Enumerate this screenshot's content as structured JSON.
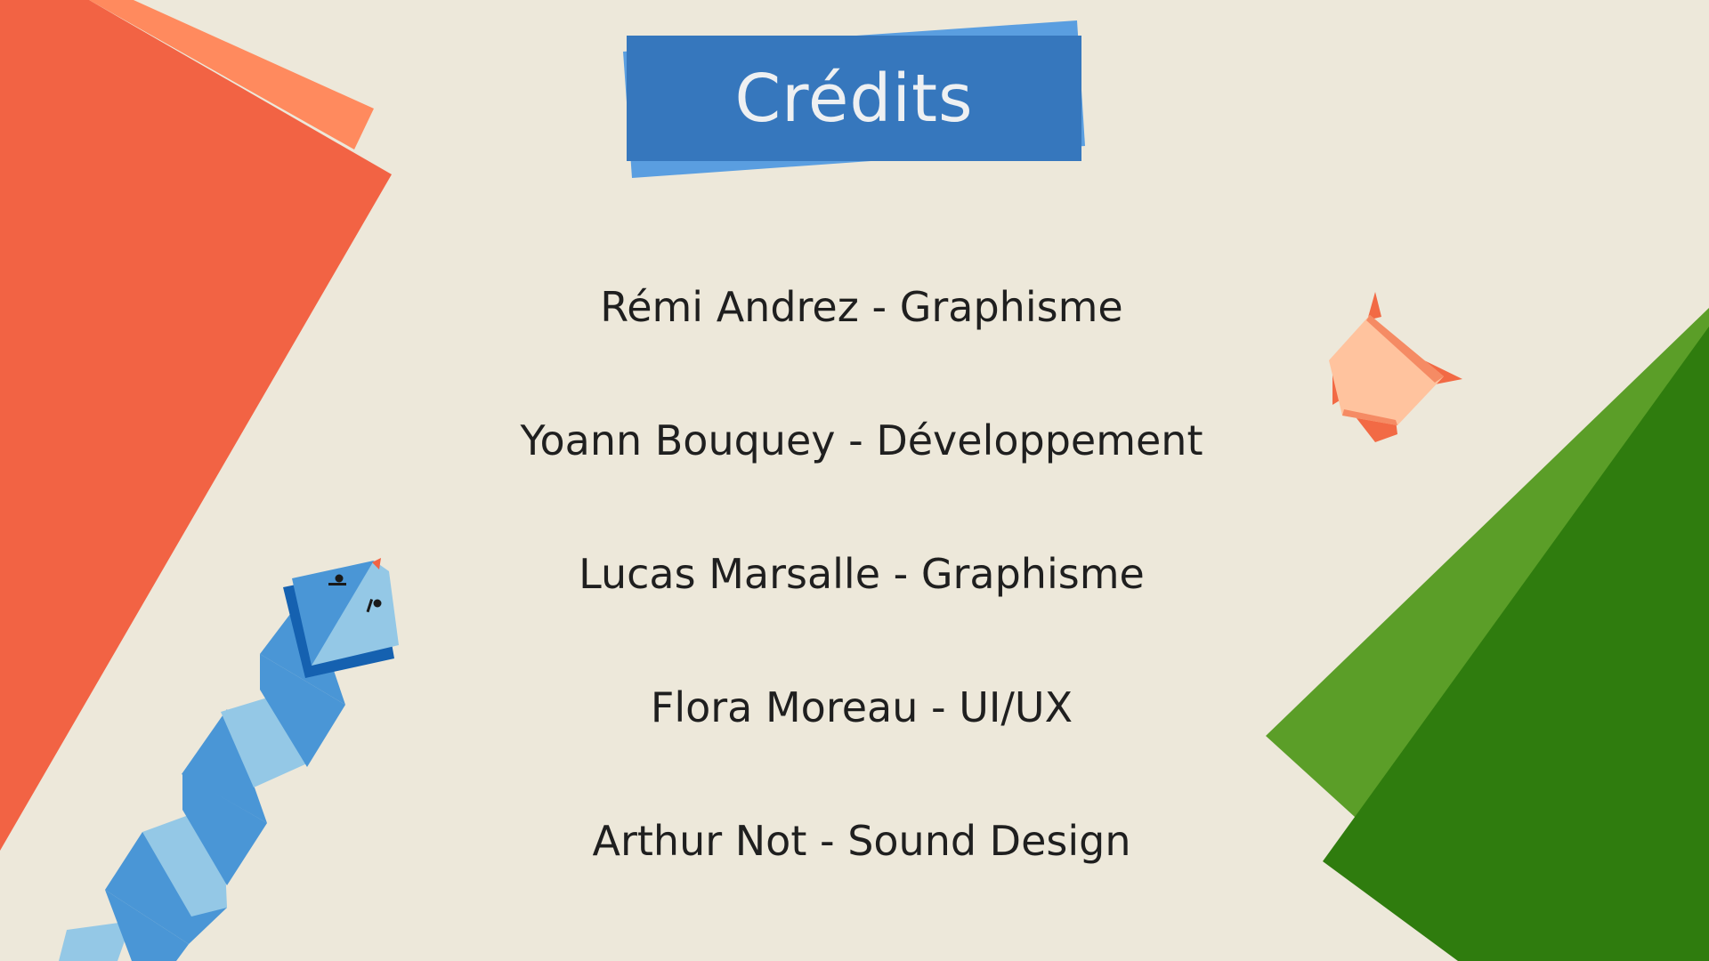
{
  "screen": {
    "title": "Crédits",
    "credits": [
      {
        "name": "Rémi Andrez",
        "role": "Graphisme",
        "text": "Rémi Andrez - Graphisme"
      },
      {
        "name": "Yoann Bouquey",
        "role": "Développement",
        "text": "Yoann Bouquey - Développement"
      },
      {
        "name": "Lucas Marsalle",
        "role": "Graphisme",
        "text": "Lucas Marsalle - Graphisme"
      },
      {
        "name": "Flora Moreau",
        "role": "UI/UX",
        "text": "Flora Moreau - UI/UX"
      },
      {
        "name": "Arthur Not",
        "role": "Sound Design",
        "text": "Arthur Not - Sound Design"
      }
    ]
  },
  "colors": {
    "background": "#ede8da",
    "title_box": "#3677bd",
    "title_box_back": "#5a9ee0",
    "title_text": "#eef0f2",
    "credit_text": "#1f1f1f",
    "paper_red": "#f26344",
    "paper_salmon": "#ff8a5e",
    "paper_green_light": "#5b9e28",
    "paper_green_dark": "#2f7c0e",
    "snake_blue": "#4a96d6",
    "snake_light": "#94c8e6",
    "snake_dark": "#1561b0",
    "fish_body": "#ffc39e",
    "fish_fin": "#f26a45"
  },
  "decorations": {
    "top_left": "origami-paper-sheets",
    "bottom_left": "origami-snake",
    "right": "origami-fish",
    "bottom_right": "origami-green-paper"
  }
}
